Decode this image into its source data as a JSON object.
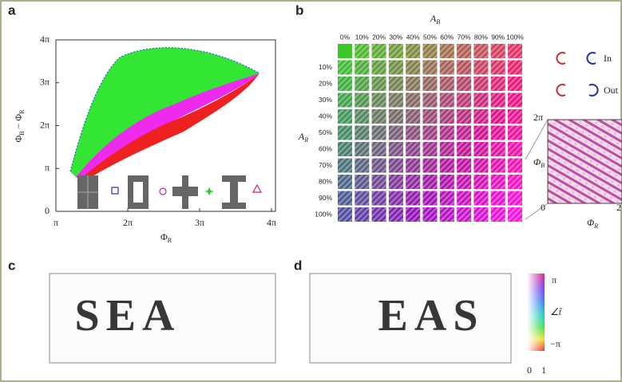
{
  "panels": {
    "a": {
      "label": "a",
      "y_label": [
        "Φ",
        "B",
        " − Φ",
        "R"
      ],
      "x_label": [
        "Φ",
        "R"
      ],
      "y_ticks": [
        "0",
        "π",
        "2π",
        "3π",
        "4π"
      ],
      "x_ticks": [
        "π",
        "2π",
        "3π",
        "4π"
      ]
    },
    "b": {
      "label": "b",
      "column_title": [
        "A",
        "B"
      ],
      "row_title": [
        "A",
        "R"
      ],
      "columns": [
        "0%",
        "10%",
        "20%",
        "30%",
        "40%",
        "50%",
        "60%",
        "70%",
        "80%",
        "90%",
        "100%"
      ],
      "rows": [
        null,
        "10%",
        "20%",
        "30%",
        "40%",
        "50%",
        "60%",
        "70%",
        "80%",
        "90%",
        "100%"
      ],
      "legend": [
        "In",
        "Out"
      ],
      "inset": {
        "y_top": "2π",
        "origin": "0",
        "x_end": "2",
        "y_label": [
          "Φ",
          "B"
        ],
        "x_label": [
          "Φ",
          "R"
        ]
      }
    },
    "c": {
      "label": "c",
      "image_text": "SEA"
    },
    "d": {
      "label": "d",
      "image_text": "EAS",
      "colorbar": {
        "top": "π",
        "title": "∠t̃",
        "bottom": "−π",
        "amp_min": "0",
        "amp_max": "1"
      }
    }
  }
}
